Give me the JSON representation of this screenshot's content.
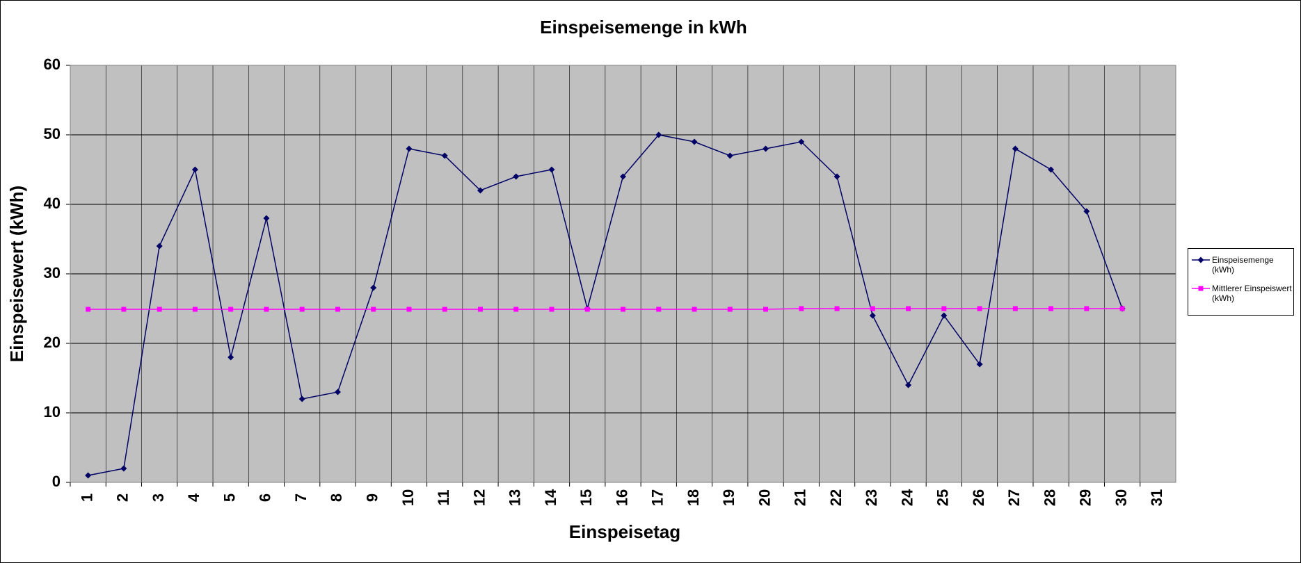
{
  "chart_data": {
    "type": "line",
    "title": "Einspeisemenge in kWh",
    "xlabel": "Einspeisetag",
    "ylabel": "Einspeisewert  (kWh)",
    "categories": [
      "1",
      "2",
      "3",
      "4",
      "5",
      "6",
      "7",
      "8",
      "9",
      "10",
      "11",
      "12",
      "13",
      "14",
      "15",
      "16",
      "17",
      "18",
      "19",
      "20",
      "21",
      "22",
      "23",
      "24",
      "25",
      "26",
      "27",
      "28",
      "29",
      "30",
      "31"
    ],
    "series": [
      {
        "name": "Einspeisemenge (kWh)",
        "color": "#000066",
        "marker": "diamond",
        "values": [
          1,
          2,
          34,
          45,
          18,
          38,
          12,
          13,
          28,
          48,
          47,
          42,
          44,
          45,
          25,
          44,
          50,
          49,
          47,
          48,
          49,
          44,
          24,
          14,
          24,
          17,
          48,
          45,
          39,
          25,
          null
        ]
      },
      {
        "name": "Mittlerer Einspeiswert (kWh)",
        "color": "#ff00ff",
        "marker": "square",
        "values": [
          24.9,
          24.9,
          24.9,
          24.9,
          24.9,
          24.9,
          24.9,
          24.9,
          24.9,
          24.9,
          24.9,
          24.9,
          24.9,
          24.9,
          24.9,
          24.9,
          24.9,
          24.9,
          24.9,
          24.9,
          25,
          25,
          25,
          25,
          25,
          25,
          25,
          25,
          25,
          25,
          null
        ]
      }
    ],
    "ylim": [
      0,
      60
    ],
    "yticks": [
      0,
      10,
      20,
      30,
      40,
      50,
      60
    ],
    "grid": true,
    "legend": "right"
  }
}
